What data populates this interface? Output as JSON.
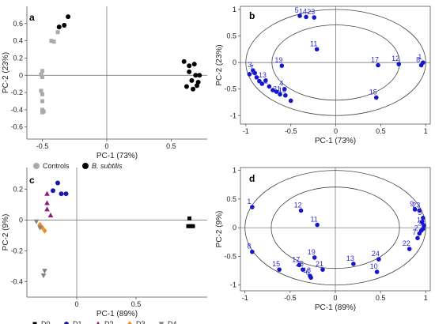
{
  "chart_data": [
    {
      "panel": "a",
      "type": "scatter",
      "xlabel": "PC-1 (73%)",
      "ylabel": "PC-2 (23%)",
      "xlim": [
        -0.62,
        0.78
      ],
      "ylim": [
        -0.74,
        0.8
      ],
      "xticks": [
        "-0.5",
        "0",
        "0.5"
      ],
      "xtick_values": [
        -0.5,
        0,
        0.5
      ],
      "yticks": [
        "-0.6",
        "-0.4",
        "-0.2",
        "0",
        "0.2",
        "0.4",
        "0.6"
      ],
      "ytick_values": [
        -0.6,
        -0.4,
        -0.2,
        0,
        0.2,
        0.4,
        0.6
      ],
      "legend": [
        {
          "label": "Controls",
          "italic": false,
          "marker": "circle",
          "color": "#aaaaaa"
        },
        {
          "label": "B. subtilis",
          "italic": true,
          "marker": "circle",
          "color": "#000000"
        }
      ],
      "series": [
        {
          "name": "Controls",
          "marker": "square",
          "color": "#aaaaaa",
          "points": [
            [
              -0.43,
              0.4
            ],
            [
              -0.41,
              0.39
            ],
            [
              -0.38,
              0.5
            ],
            [
              -0.5,
              0.05
            ],
            [
              -0.51,
              0.01
            ],
            [
              -0.5,
              -0.02
            ],
            [
              -0.51,
              -0.18
            ],
            [
              -0.5,
              -0.22
            ],
            [
              -0.5,
              -0.3
            ],
            [
              -0.5,
              -0.4
            ],
            [
              -0.49,
              -0.42
            ],
            [
              -0.5,
              -0.43
            ]
          ]
        },
        {
          "name": "B. subtilis",
          "marker": "circle",
          "color": "#000000",
          "points": [
            [
              -0.37,
              0.56
            ],
            [
              -0.33,
              0.58
            ],
            [
              -0.3,
              0.68
            ],
            [
              0.6,
              0.16
            ],
            [
              0.64,
              0.11
            ],
            [
              0.68,
              0.13
            ],
            [
              0.64,
              0.04
            ],
            [
              0.69,
              0.0
            ],
            [
              0.72,
              0.0
            ],
            [
              0.66,
              -0.06
            ],
            [
              0.71,
              -0.08
            ],
            [
              0.62,
              -0.13
            ],
            [
              0.67,
              -0.16
            ],
            [
              0.7,
              -0.12
            ]
          ]
        }
      ]
    },
    {
      "panel": "b",
      "type": "scatter",
      "xlabel": "PC-1 (73%)",
      "ylabel": "PC-2 (23%)",
      "xlim": [
        -1.06,
        1.05
      ],
      "ylim": [
        -1.16,
        1.06
      ],
      "xticks": [
        "-1",
        "-0.5",
        "0",
        "0.5",
        "1"
      ],
      "xtick_values": [
        -1,
        -0.5,
        0,
        0.5,
        1
      ],
      "yticks": [
        "-1",
        "-0.5",
        "0",
        "0.5",
        "1"
      ],
      "ytick_values": [
        -1,
        -0.5,
        0,
        0.5,
        1
      ],
      "ellipses": [
        {
          "rx": 1.0,
          "ry": 1.0
        },
        {
          "rx": 0.71,
          "ry": 0.71
        }
      ],
      "color": "#1515cc",
      "points": [
        {
          "label": "5",
          "x": -0.4,
          "y": 0.88
        },
        {
          "label": "14",
          "x": -0.33,
          "y": 0.86
        },
        {
          "label": "23",
          "x": -0.24,
          "y": 0.85
        },
        {
          "label": "11",
          "x": -0.21,
          "y": 0.25
        },
        {
          "label": "12",
          "x": 0.7,
          "y": -0.03
        },
        {
          "label": "1",
          "x": 0.97,
          "y": 0.0
        },
        {
          "label": "8",
          "x": 0.95,
          "y": -0.05
        },
        {
          "label": "17",
          "x": 0.47,
          "y": -0.05
        },
        {
          "label": "15",
          "x": 0.45,
          "y": -0.66
        },
        {
          "label": "19",
          "x": -0.6,
          "y": -0.06
        },
        {
          "label": "3",
          "x": -0.92,
          "y": -0.15
        },
        {
          "label": "7",
          "x": -0.9,
          "y": -0.2
        },
        {
          "label": "2",
          "x": -0.88,
          "y": -0.28
        },
        {
          "label": "13",
          "x": -0.78,
          "y": -0.34
        },
        {
          "label": "2",
          "x": -0.74,
          "y": -0.45
        },
        {
          "label": "4",
          "x": -0.57,
          "y": -0.5
        },
        {
          "label": "21",
          "x": -0.62,
          "y": -0.6
        },
        {
          "label": "16",
          "x": -0.56,
          "y": -0.62
        },
        {
          "label": "",
          "x": -0.96,
          "y": -0.22
        },
        {
          "label": "",
          "x": -0.85,
          "y": -0.35
        },
        {
          "label": "",
          "x": -0.82,
          "y": -0.4
        },
        {
          "label": "",
          "x": -0.7,
          "y": -0.52
        },
        {
          "label": "",
          "x": -0.66,
          "y": -0.55
        },
        {
          "label": "",
          "x": -0.5,
          "y": -0.72
        }
      ]
    },
    {
      "panel": "c",
      "type": "scatter",
      "xlabel": "PC-1 (89%)",
      "ylabel": "PC-2 (9%)",
      "xlim": [
        -0.42,
        1.1
      ],
      "ylim": [
        -0.5,
        0.34
      ],
      "xticks": [
        "0",
        "0.5"
      ],
      "xtick_values": [
        0,
        0.5
      ],
      "yticks": [
        "-0.4",
        "-0.2",
        "0",
        "0.2"
      ],
      "ytick_values": [
        -0.4,
        -0.2,
        0,
        0.2
      ],
      "legend": [
        {
          "label": "D0",
          "marker": "square",
          "color": "#000000"
        },
        {
          "label": "D1",
          "marker": "circle",
          "color": "#1a1aa8"
        },
        {
          "label": "D2",
          "marker": "triangle",
          "color": "#8b1a7a"
        },
        {
          "label": "D3",
          "marker": "diamond",
          "color": "#f08c1e"
        },
        {
          "label": "D4",
          "marker": "triangle-down",
          "color": "#808080"
        }
      ],
      "series": [
        {
          "name": "D0",
          "marker": "square",
          "color": "#000000",
          "points": [
            [
              0.95,
              0.01
            ],
            [
              0.94,
              -0.04
            ],
            [
              0.96,
              -0.04
            ],
            [
              0.98,
              -0.04
            ]
          ]
        },
        {
          "name": "D1",
          "marker": "circle",
          "color": "#1a1aa8",
          "points": [
            [
              -0.16,
              0.24
            ],
            [
              -0.2,
              0.19
            ],
            [
              -0.13,
              0.17
            ],
            [
              -0.09,
              0.17
            ]
          ]
        },
        {
          "name": "D2",
          "marker": "triangle",
          "color": "#8b1a7a",
          "points": [
            [
              -0.25,
              0.17
            ],
            [
              -0.25,
              0.11
            ],
            [
              -0.25,
              0.07
            ],
            [
              -0.22,
              0.03
            ]
          ]
        },
        {
          "name": "D3",
          "marker": "diamond",
          "color": "#f08c1e",
          "points": [
            [
              -0.31,
              -0.03
            ],
            [
              -0.29,
              -0.05
            ],
            [
              -0.27,
              -0.07
            ]
          ]
        },
        {
          "name": "D4",
          "marker": "triangle-down",
          "color": "#808080",
          "points": [
            [
              -0.34,
              -0.01
            ],
            [
              -0.31,
              -0.05
            ],
            [
              -0.27,
              -0.33
            ],
            [
              -0.28,
              -0.36
            ]
          ]
        }
      ]
    },
    {
      "panel": "d",
      "type": "scatter",
      "xlabel": "PC-1 (89%)",
      "ylabel": "PC-2 (9%)",
      "xlim": [
        -1.05,
        1.05
      ],
      "ylim": [
        -1.1,
        1.05
      ],
      "xticks": [
        "-1",
        "-0.5",
        "0",
        "0.5",
        "1"
      ],
      "xtick_values": [
        -1,
        -0.5,
        0,
        0.5,
        1
      ],
      "yticks": [
        "-1",
        "-0.5",
        "0",
        "0.5",
        "1"
      ],
      "ytick_values": [
        -1,
        -0.5,
        0,
        0.5,
        1
      ],
      "ellipses": [
        {
          "rx": 1.0,
          "ry": 1.0
        },
        {
          "rx": 0.71,
          "ry": 0.71
        }
      ],
      "color": "#1515cc",
      "points": [
        {
          "label": "1",
          "x": -0.92,
          "y": 0.36
        },
        {
          "label": "12",
          "x": -0.38,
          "y": 0.3
        },
        {
          "label": "11",
          "x": -0.2,
          "y": 0.05
        },
        {
          "label": "9",
          "x": 0.88,
          "y": 0.32
        },
        {
          "label": "23",
          "x": 0.93,
          "y": 0.3
        },
        {
          "label": "5",
          "x": 0.97,
          "y": 0.17
        },
        {
          "label": "14",
          "x": 0.98,
          "y": 0.04
        },
        {
          "label": "3",
          "x": 0.97,
          "y": -0.02
        },
        {
          "label": "2",
          "x": 0.93,
          "y": -0.1
        },
        {
          "label": "7",
          "x": 0.91,
          "y": -0.18
        },
        {
          "label": "22",
          "x": 0.82,
          "y": -0.37
        },
        {
          "label": "8",
          "x": -0.92,
          "y": -0.42
        },
        {
          "label": "15",
          "x": -0.62,
          "y": -0.73
        },
        {
          "label": "17",
          "x": -0.4,
          "y": -0.65
        },
        {
          "label": "25",
          "x": -0.36,
          "y": -0.73
        },
        {
          "label": "18",
          "x": -0.28,
          "y": -0.84
        },
        {
          "label": "6",
          "x": -0.27,
          "y": -0.87
        },
        {
          "label": "19",
          "x": -0.23,
          "y": -0.52
        },
        {
          "label": "21",
          "x": -0.14,
          "y": -0.73
        },
        {
          "label": "13",
          "x": 0.2,
          "y": -0.63
        },
        {
          "label": "24",
          "x": 0.48,
          "y": -0.55
        },
        {
          "label": "10",
          "x": 0.46,
          "y": -0.77
        },
        {
          "label": "",
          "x": 0.96,
          "y": 0.1
        },
        {
          "label": "",
          "x": 0.95,
          "y": -0.05
        }
      ]
    }
  ]
}
